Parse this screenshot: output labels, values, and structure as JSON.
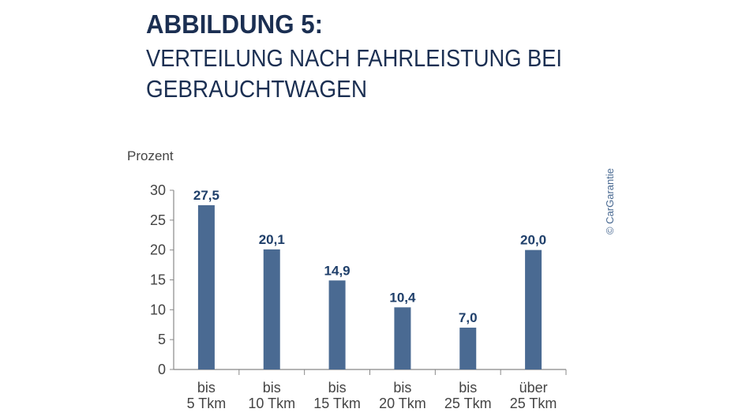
{
  "chart_data": {
    "type": "bar",
    "title": "ABBILDUNG 5:",
    "subtitle_lines": [
      "VERTEILUNG NACH FAHRLEISTUNG BEI",
      "GEBRAUCHTWAGEN"
    ],
    "ylabel": "Prozent",
    "xlabel": "",
    "ylim": [
      0,
      30
    ],
    "yticks": [
      "0",
      "5",
      "10",
      "15",
      "20",
      "25",
      "30"
    ],
    "categories": [
      [
        "bis",
        "5 Tkm"
      ],
      [
        "bis",
        "10 Tkm"
      ],
      [
        "bis",
        "15 Tkm"
      ],
      [
        "bis",
        "20 Tkm"
      ],
      [
        "bis",
        "25 Tkm"
      ],
      [
        "über",
        "25 Tkm"
      ]
    ],
    "values": [
      27.5,
      20.1,
      14.9,
      10.4,
      7.0,
      20.0
    ],
    "data_labels": [
      "27,5",
      "20,1",
      "14,9",
      "10,4",
      "7,0",
      "20,0"
    ],
    "grid": false,
    "bar_color": "#4a6a92",
    "label_color": "#1f3f6a",
    "title_color": "#1b2f52",
    "copyright": "© CarGarantie"
  }
}
